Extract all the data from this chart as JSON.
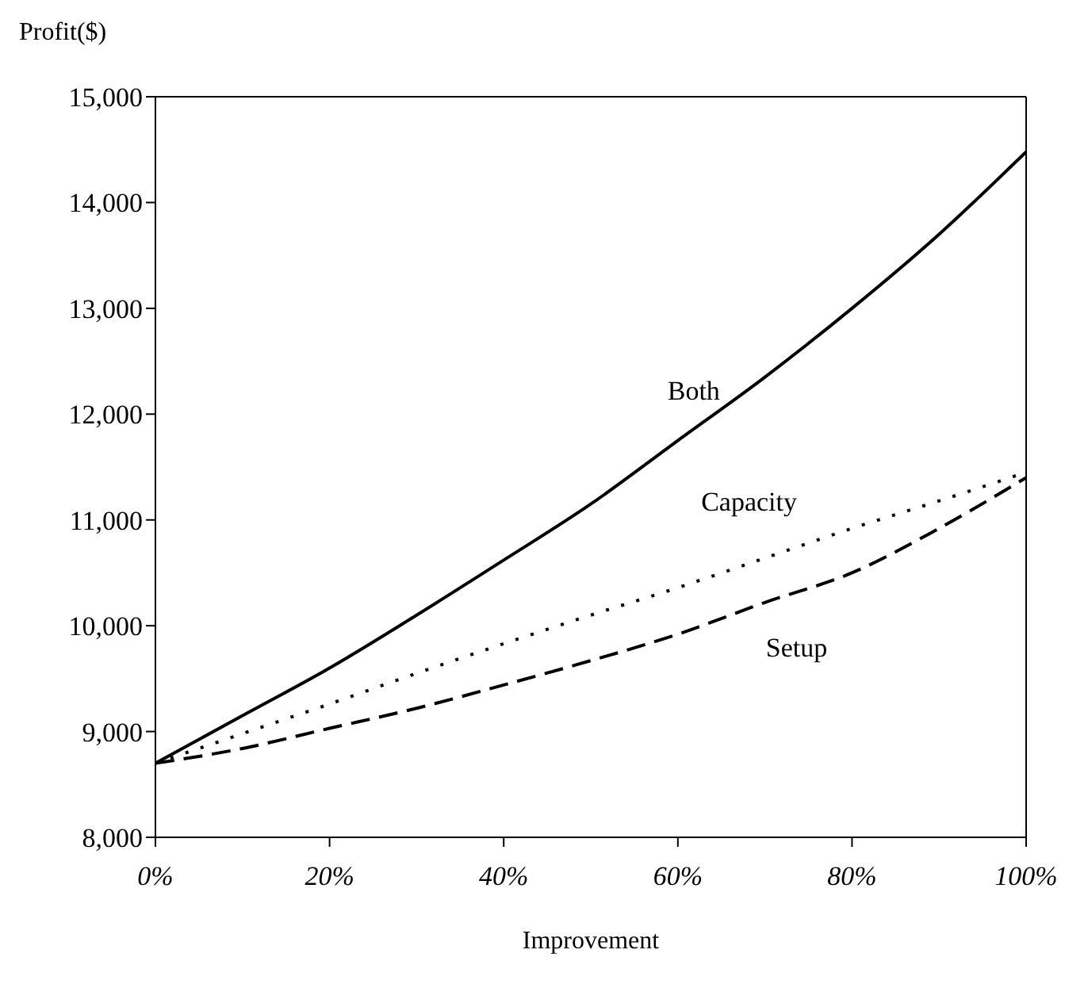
{
  "chart_data": {
    "type": "line",
    "xlabel": "Improvement",
    "ylabel": "Profit($)",
    "x": [
      0,
      10,
      20,
      30,
      40,
      50,
      60,
      70,
      80,
      90,
      100
    ],
    "series": [
      {
        "name": "Both",
        "color": "#000000",
        "line_style": "solid",
        "values": [
          8700,
          9150,
          9600,
          10100,
          10620,
          11150,
          11750,
          12350,
          13000,
          13700,
          14480
        ]
      },
      {
        "name": "Capacity",
        "color": "#000000",
        "line_style": "dotted",
        "values": [
          8700,
          8980,
          9260,
          9550,
          9830,
          10100,
          10360,
          10640,
          10920,
          11180,
          11450
        ]
      },
      {
        "name": "Setup",
        "color": "#000000",
        "line_style": "dashed",
        "values": [
          8700,
          8840,
          9030,
          9220,
          9440,
          9670,
          9920,
          10220,
          10500,
          10920,
          11400
        ]
      }
    ],
    "xlim": [
      0,
      100
    ],
    "xticks": [
      {
        "value": 0,
        "label": "0%"
      },
      {
        "value": 20,
        "label": "20%"
      },
      {
        "value": 40,
        "label": "40%"
      },
      {
        "value": 60,
        "label": "60%"
      },
      {
        "value": 80,
        "label": "80%"
      },
      {
        "value": 100,
        "label": "100%"
      }
    ],
    "ylim": [
      8000,
      15000
    ],
    "yticks": [
      {
        "value": 8000,
        "label": "8,000"
      },
      {
        "value": 9000,
        "label": "9,000"
      },
      {
        "value": 10000,
        "label": "10,000"
      },
      {
        "value": 11000,
        "label": "11,000"
      },
      {
        "value": 12000,
        "label": "12,000"
      },
      {
        "value": 13000,
        "label": "13,000"
      },
      {
        "value": 14000,
        "label": "14,000"
      },
      {
        "value": 15000,
        "label": "15,000"
      }
    ],
    "grid": false,
    "legend": false,
    "marker": "none"
  }
}
